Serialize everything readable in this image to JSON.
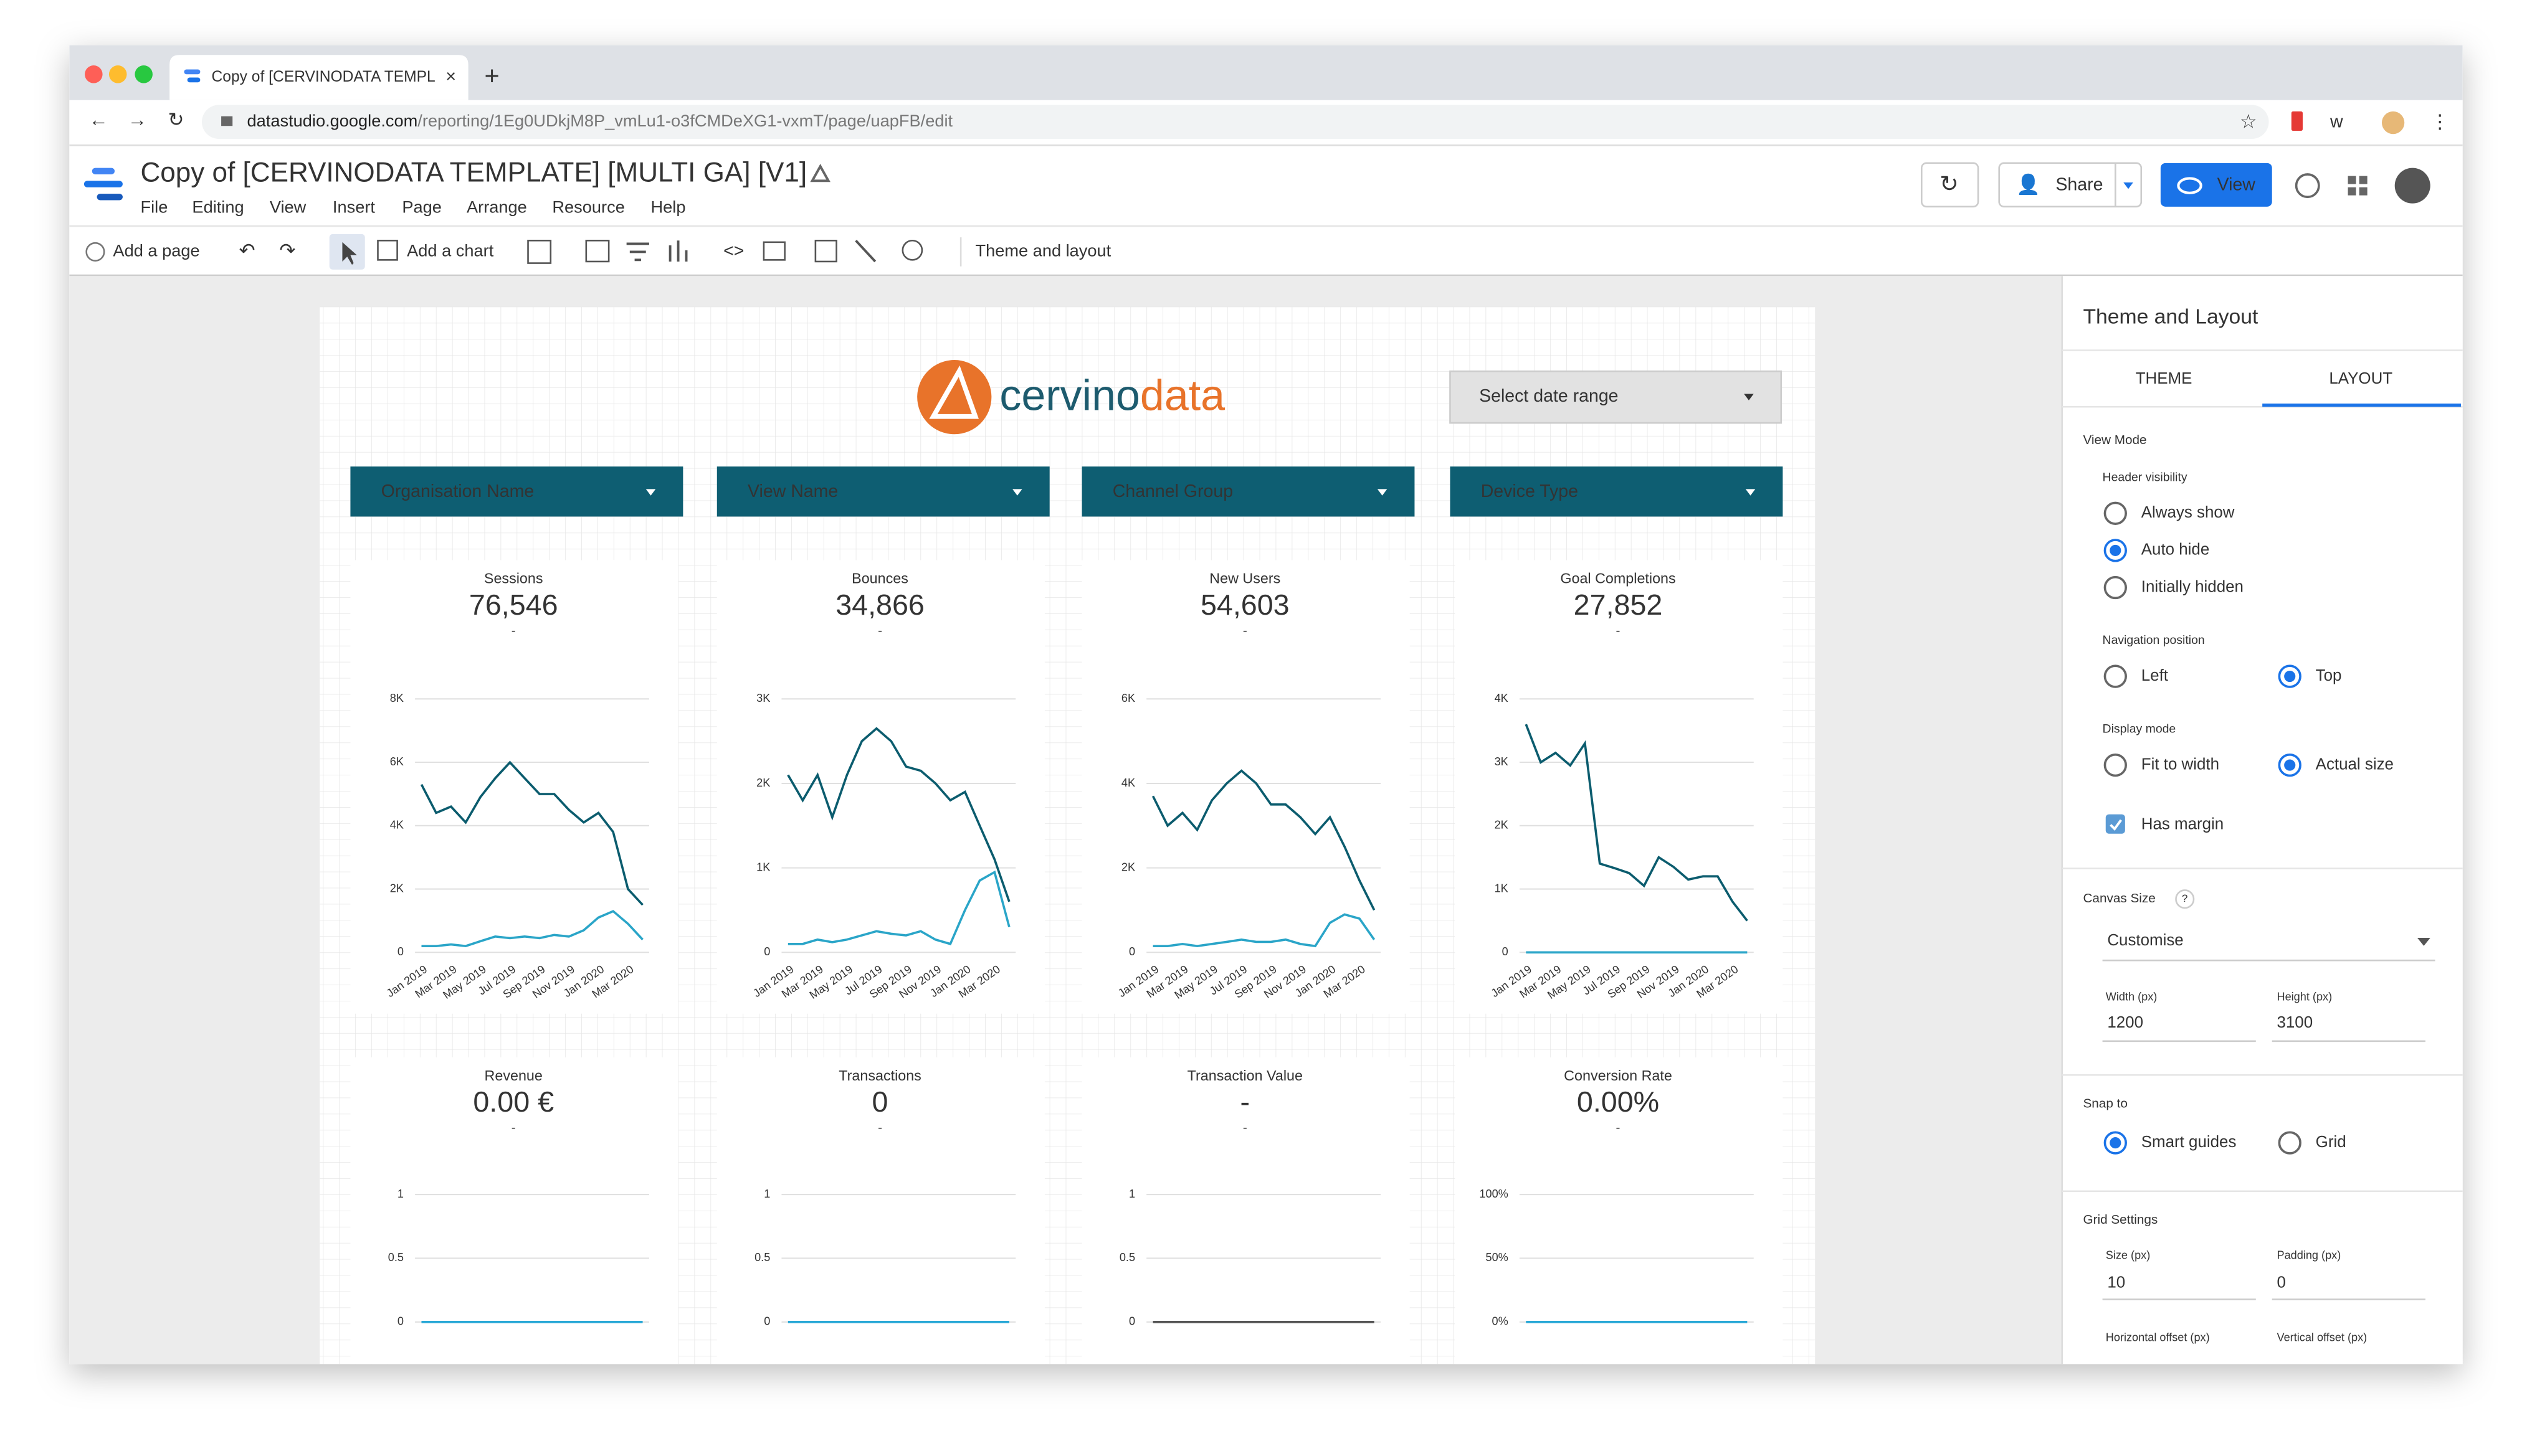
{
  "browser": {
    "tab_title": "Copy of [CERVINODATA TEMPL",
    "url_domain": "datastudio.google.com",
    "url_path": "/reporting/1Eg0UDkjM8P_vmLu1-o3fCMDeXG1-vxmT/page/uapFB/edit"
  },
  "app": {
    "title": "Copy of [CERVINODATA TEMPLATE] [MULTI GA] [V1]",
    "menu": [
      "File",
      "Editing",
      "View",
      "Insert",
      "Page",
      "Arrange",
      "Resource",
      "Help"
    ],
    "share": "Share",
    "view": "View"
  },
  "toolbar": {
    "add_page": "Add a page",
    "add_chart": "Add a chart",
    "theme_layout": "Theme and layout"
  },
  "report": {
    "logo_prefix": "cervino",
    "logo_suffix": "data",
    "date_range": "Select date range",
    "filters": [
      "Organisation Name",
      "View Name",
      "Channel Group",
      "Device Type"
    ],
    "months": [
      "Jan 2019",
      null,
      "Mar 2019",
      null,
      "May 2019",
      null,
      "Jul 2019",
      null,
      "Sep 2019",
      null,
      "Nov 2019",
      null,
      "Jan 2020",
      null,
      "Mar 2020",
      null
    ],
    "scorecards": [
      {
        "label": "Sessions",
        "value": "76,546",
        "delta": "-",
        "ylim": [
          0,
          8000
        ],
        "yticks": [
          0,
          {
            "value": 2000,
            "label": "2K"
          },
          {
            "value": 4000,
            "label": "4K"
          },
          {
            "value": 6000,
            "label": "6K"
          },
          {
            "value": 8000,
            "label": "8K"
          }
        ],
        "series": [
          {
            "color": "#0b5c6e",
            "values": [
              5300,
              4400,
              4600,
              4100,
              4900,
              5500,
              6000,
              5500,
              5000,
              5000,
              4500,
              4100,
              4400,
              3800,
              2000,
              1500
            ]
          },
          {
            "color": "#2aa5c8",
            "values": [
              200,
              200,
              250,
              200,
              350,
              500,
              450,
              500,
              450,
              550,
              500,
              700,
              1100,
              1300,
              900,
              400
            ]
          }
        ]
      },
      {
        "label": "Bounces",
        "value": "34,866",
        "delta": "-",
        "ylim": [
          0,
          3000
        ],
        "yticks": [
          0,
          {
            "value": 1000,
            "label": "1K"
          },
          {
            "value": 2000,
            "label": "2K"
          },
          {
            "value": 3000,
            "label": "3K"
          }
        ],
        "series": [
          {
            "color": "#0b5c6e",
            "values": [
              2100,
              1800,
              2100,
              1600,
              2100,
              2500,
              2650,
              2500,
              2200,
              2150,
              2000,
              1800,
              1900,
              1500,
              1100,
              600
            ]
          },
          {
            "color": "#2aa5c8",
            "values": [
              100,
              100,
              150,
              120,
              150,
              200,
              250,
              220,
              200,
              250,
              150,
              100,
              500,
              850,
              950,
              300
            ]
          }
        ]
      },
      {
        "label": "New Users",
        "value": "54,603",
        "delta": "-",
        "ylim": [
          0,
          6000
        ],
        "yticks": [
          0,
          {
            "value": 2000,
            "label": "2K"
          },
          {
            "value": 4000,
            "label": "4K"
          },
          {
            "value": 6000,
            "label": "6K"
          }
        ],
        "series": [
          {
            "color": "#0b5c6e",
            "values": [
              3700,
              3000,
              3300,
              2900,
              3600,
              4000,
              4300,
              4000,
              3500,
              3500,
              3200,
              2800,
              3200,
              2500,
              1700,
              1000
            ]
          },
          {
            "color": "#2aa5c8",
            "values": [
              150,
              150,
              200,
              150,
              200,
              250,
              300,
              250,
              250,
              300,
              200,
              150,
              700,
              900,
              800,
              300
            ]
          }
        ]
      },
      {
        "label": "Goal Completions",
        "value": "27,852",
        "delta": "-",
        "ylim": [
          0,
          4000
        ],
        "yticks": [
          0,
          {
            "value": 1000,
            "label": "1K"
          },
          {
            "value": 2000,
            "label": "2K"
          },
          {
            "value": 3000,
            "label": "3K"
          },
          {
            "value": 4000,
            "label": "4K"
          }
        ],
        "series": [
          {
            "color": "#0b5c6e",
            "values": [
              3600,
              3000,
              3150,
              2950,
              3300,
              1400,
              1330,
              1250,
              1050,
              1500,
              1350,
              1150,
              1200,
              1200,
              800,
              500
            ]
          },
          {
            "color": "#2aa5c8",
            "values": [
              0,
              0,
              0,
              0,
              0,
              0,
              0,
              0,
              0,
              0,
              0,
              0,
              0,
              0,
              0,
              0
            ]
          }
        ]
      },
      {
        "label": "Revenue",
        "value": "0.00 €",
        "delta": "-",
        "ylim": [
          0,
          1
        ],
        "yticks": [
          0,
          0.5,
          1
        ],
        "series": [
          {
            "color": "#29a8d6",
            "values": [
              0,
              0,
              0,
              0,
              0,
              0,
              0,
              0,
              0,
              0,
              0,
              0,
              0,
              0,
              0,
              0
            ]
          }
        ]
      },
      {
        "label": "Transactions",
        "value": "0",
        "delta": "-",
        "ylim": [
          0,
          1
        ],
        "yticks": [
          0,
          0.5,
          1
        ],
        "series": [
          {
            "color": "#29a8d6",
            "values": [
              0,
              0,
              0,
              0,
              0,
              0,
              0,
              0,
              0,
              0,
              0,
              0,
              0,
              0,
              0,
              0
            ]
          }
        ]
      },
      {
        "label": "Transaction Value",
        "value": "-",
        "delta": "-",
        "ylim": [
          0,
          1
        ],
        "yticks": [
          0,
          0.5,
          1
        ],
        "series": [
          {
            "color": "#555555",
            "values": [
              0,
              0,
              0,
              0,
              0,
              0,
              0,
              0,
              0,
              0,
              0,
              0,
              0,
              0,
              0,
              0
            ]
          }
        ]
      },
      {
        "label": "Conversion Rate",
        "value": "0.00%",
        "delta": "-",
        "ylim": [
          0,
          1
        ],
        "yticks": [
          {
            "value": 0,
            "label": "0%"
          },
          {
            "value": 0.5,
            "label": "50%"
          },
          {
            "value": 1,
            "label": "100%"
          }
        ],
        "series": [
          {
            "color": "#29a8d6",
            "values": [
              0,
              0,
              0,
              0,
              0,
              0,
              0,
              0,
              0,
              0,
              0,
              0,
              0,
              0,
              0,
              0
            ]
          }
        ]
      }
    ]
  },
  "panel": {
    "title": "Theme and Layout",
    "tabs": [
      "THEME",
      "LAYOUT"
    ],
    "active_tab": 1,
    "view_mode": "View Mode",
    "header_visibility": {
      "label": "Header visibility",
      "options": [
        "Always show",
        "Auto hide",
        "Initially hidden"
      ],
      "selected": 1
    },
    "navigation_position": {
      "label": "Navigation position",
      "options": [
        "Left",
        "Top"
      ],
      "selected": 1
    },
    "display_mode": {
      "label": "Display mode",
      "options": [
        "Fit to width",
        "Actual size"
      ],
      "selected": 1
    },
    "has_margin": {
      "label": "Has margin",
      "checked": true
    },
    "canvas_size": {
      "label": "Canvas Size",
      "help": "?",
      "preset": "Customise",
      "width_label": "Width (px)",
      "width": "1200",
      "height_label": "Height (px)",
      "height": "3100"
    },
    "snap_to": {
      "label": "Snap to",
      "options": [
        "Smart guides",
        "Grid"
      ],
      "selected": 0
    },
    "grid_settings": {
      "label": "Grid Settings",
      "size_label": "Size (px)",
      "size": "10",
      "padding_label": "Padding (px)",
      "padding": "0",
      "horizontal_label": "Horizontal offset (px)",
      "vertical_label": "Vertical offset (px)"
    }
  }
}
